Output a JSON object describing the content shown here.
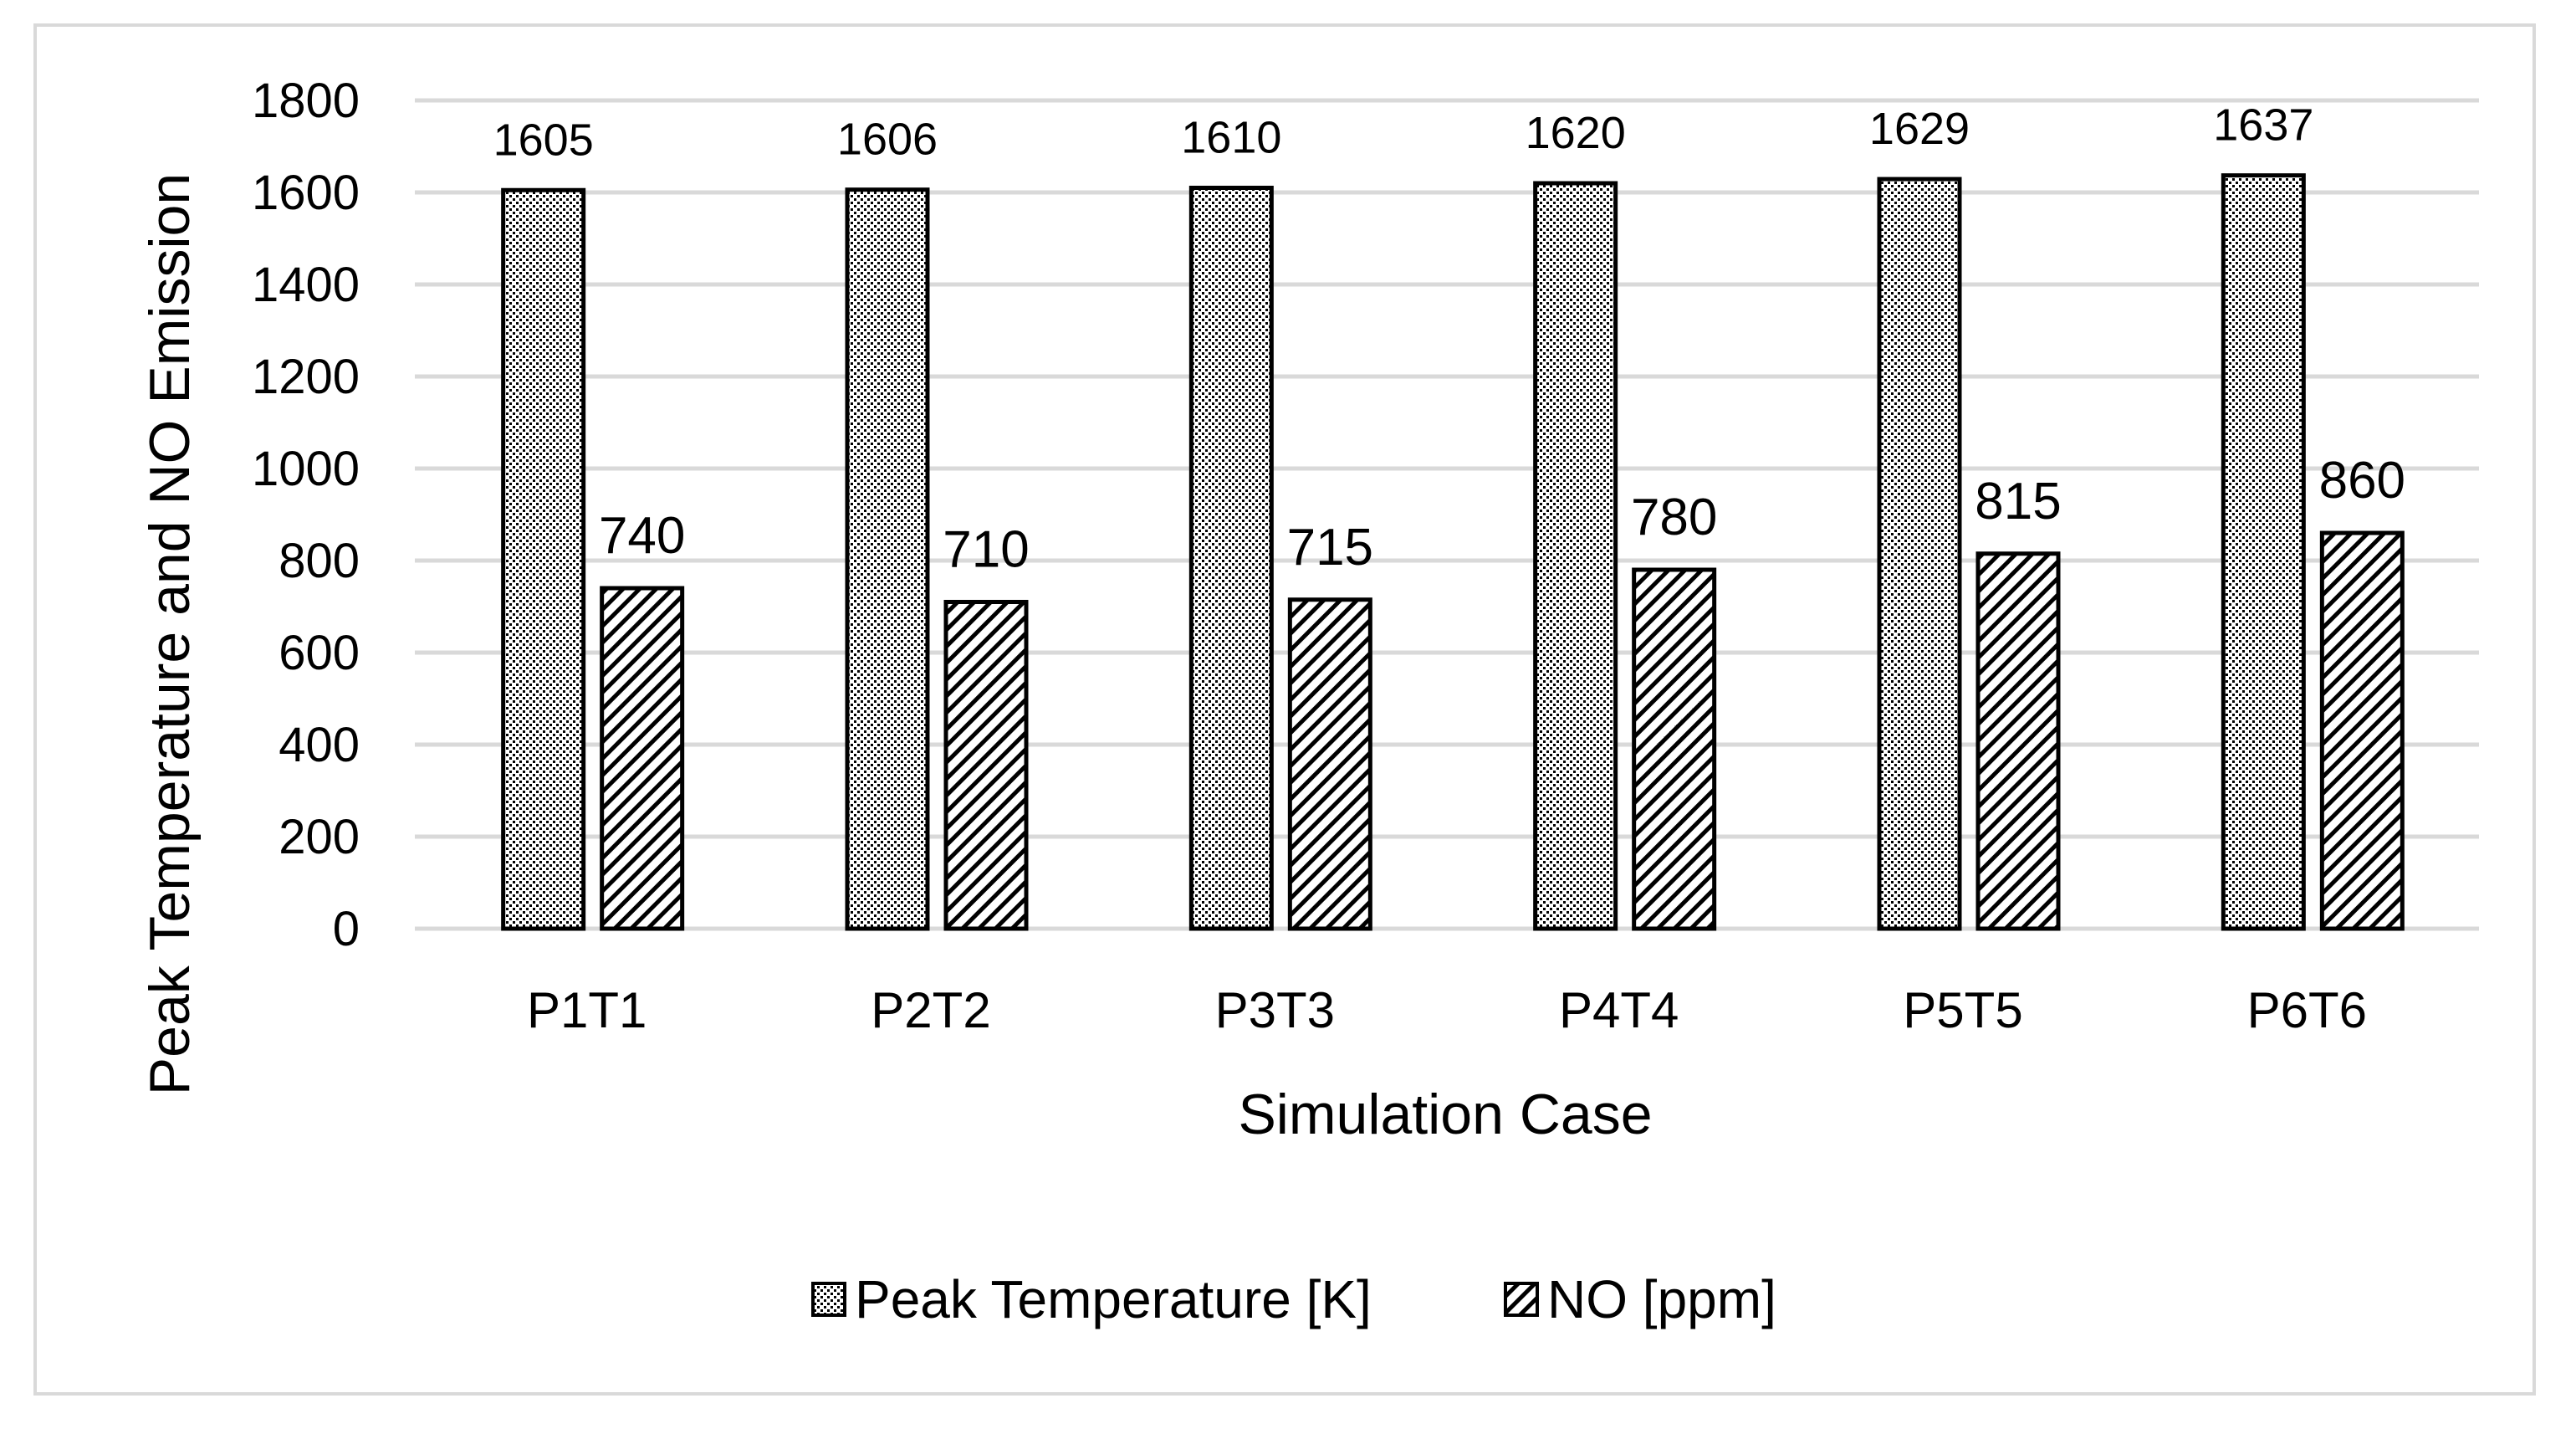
{
  "chart_data": {
    "type": "bar",
    "title": "",
    "categories": [
      "P1T1",
      "P2T2",
      "P3T3",
      "P4T4",
      "P5T5",
      "P6T6"
    ],
    "series": [
      {
        "name": "Peak Temperature [K]",
        "values": [
          1605,
          1606,
          1610,
          1620,
          1629,
          1637
        ],
        "fill": "dotted"
      },
      {
        "name": "NO [ppm]",
        "values": [
          740,
          710,
          715,
          780,
          815,
          860
        ],
        "fill": "diagonal-hatch"
      }
    ],
    "xlabel": "Simulation Case",
    "ylabel": "Peak Temperature and NO Emission",
    "ylim": [
      0,
      1800
    ],
    "yticks": [
      0,
      200,
      400,
      600,
      800,
      1000,
      1200,
      1400,
      1600,
      1800
    ],
    "grid": true,
    "legend": "bottom-center",
    "colors": {
      "bar_outline": "#000000",
      "gridline": "#d9d9d9",
      "frame": "#d9d9d9",
      "text": "#000000"
    }
  }
}
